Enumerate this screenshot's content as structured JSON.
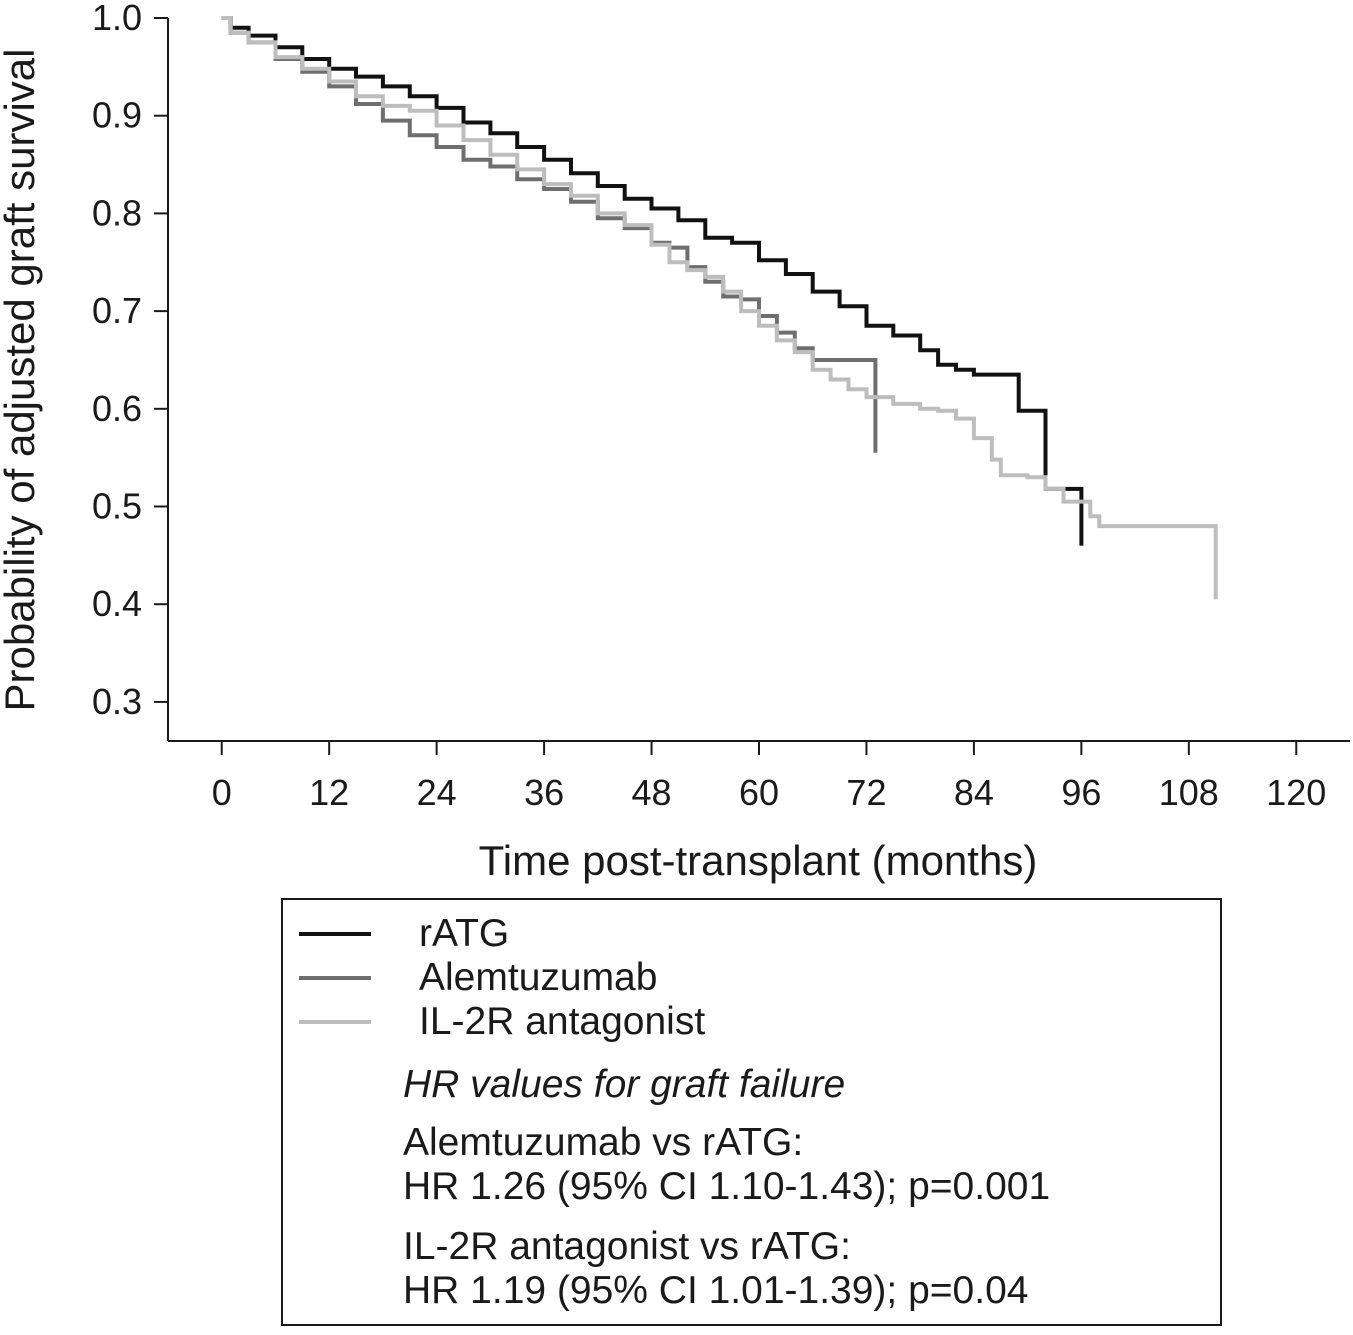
{
  "chart_data": {
    "type": "line",
    "xlabel": "Time post-transplant (months)",
    "ylabel": "Probability of adjusted graft survival",
    "xlim": [
      -6,
      126
    ],
    "ylim": [
      0.26,
      1.0
    ],
    "xticks": [
      0,
      12,
      24,
      36,
      48,
      60,
      72,
      84,
      96,
      108,
      120
    ],
    "yticks": [
      0.3,
      0.4,
      0.5,
      0.6,
      0.7,
      0.8,
      0.9,
      1.0
    ],
    "ytick_labels": [
      "0.3",
      "0.4",
      "0.5",
      "0.6",
      "0.7",
      "0.8",
      "0.9",
      "1.0"
    ],
    "step": true,
    "series": [
      {
        "name": "rATG",
        "color": "#111111",
        "points": [
          [
            0,
            1.0
          ],
          [
            1,
            0.99
          ],
          [
            3,
            0.982
          ],
          [
            6,
            0.97
          ],
          [
            9,
            0.958
          ],
          [
            12,
            0.948
          ],
          [
            15,
            0.94
          ],
          [
            18,
            0.93
          ],
          [
            21,
            0.92
          ],
          [
            24,
            0.908
          ],
          [
            27,
            0.893
          ],
          [
            30,
            0.882
          ],
          [
            33,
            0.868
          ],
          [
            36,
            0.855
          ],
          [
            39,
            0.841
          ],
          [
            42,
            0.828
          ],
          [
            45,
            0.815
          ],
          [
            48,
            0.805
          ],
          [
            51,
            0.793
          ],
          [
            54,
            0.775
          ],
          [
            57,
            0.77
          ],
          [
            60,
            0.752
          ],
          [
            63,
            0.738
          ],
          [
            66,
            0.72
          ],
          [
            69,
            0.705
          ],
          [
            72,
            0.685
          ],
          [
            75,
            0.675
          ],
          [
            78,
            0.66
          ],
          [
            80,
            0.645
          ],
          [
            82,
            0.64
          ],
          [
            84,
            0.635
          ],
          [
            89,
            0.635
          ],
          [
            89,
            0.598
          ],
          [
            92,
            0.598
          ],
          [
            92,
            0.518
          ],
          [
            96,
            0.518
          ],
          [
            96,
            0.46
          ]
        ]
      },
      {
        "name": "Alemtuzumab",
        "color": "#6e6e6e",
        "points": [
          [
            0,
            1.0
          ],
          [
            1,
            0.985
          ],
          [
            3,
            0.975
          ],
          [
            6,
            0.958
          ],
          [
            9,
            0.945
          ],
          [
            12,
            0.93
          ],
          [
            15,
            0.912
          ],
          [
            18,
            0.895
          ],
          [
            21,
            0.88
          ],
          [
            24,
            0.868
          ],
          [
            27,
            0.855
          ],
          [
            30,
            0.848
          ],
          [
            33,
            0.835
          ],
          [
            36,
            0.825
          ],
          [
            39,
            0.812
          ],
          [
            42,
            0.795
          ],
          [
            45,
            0.785
          ],
          [
            48,
            0.77
          ],
          [
            50,
            0.765
          ],
          [
            52,
            0.745
          ],
          [
            54,
            0.73
          ],
          [
            56,
            0.715
          ],
          [
            58,
            0.712
          ],
          [
            60,
            0.695
          ],
          [
            62,
            0.678
          ],
          [
            64,
            0.662
          ],
          [
            66,
            0.65
          ],
          [
            70,
            0.65
          ],
          [
            73,
            0.65
          ],
          [
            73,
            0.555
          ]
        ]
      },
      {
        "name": "IL-2R antagonist",
        "color": "#bdbdbd",
        "points": [
          [
            0,
            1.0
          ],
          [
            1,
            0.985
          ],
          [
            3,
            0.975
          ],
          [
            6,
            0.96
          ],
          [
            9,
            0.948
          ],
          [
            12,
            0.935
          ],
          [
            15,
            0.92
          ],
          [
            18,
            0.91
          ],
          [
            21,
            0.905
          ],
          [
            24,
            0.89
          ],
          [
            27,
            0.875
          ],
          [
            30,
            0.86
          ],
          [
            33,
            0.845
          ],
          [
            36,
            0.83
          ],
          [
            39,
            0.818
          ],
          [
            42,
            0.8
          ],
          [
            45,
            0.788
          ],
          [
            48,
            0.768
          ],
          [
            50,
            0.75
          ],
          [
            52,
            0.742
          ],
          [
            54,
            0.735
          ],
          [
            56,
            0.72
          ],
          [
            58,
            0.7
          ],
          [
            60,
            0.685
          ],
          [
            62,
            0.67
          ],
          [
            64,
            0.658
          ],
          [
            66,
            0.64
          ],
          [
            68,
            0.63
          ],
          [
            70,
            0.62
          ],
          [
            72,
            0.612
          ],
          [
            75,
            0.605
          ],
          [
            78,
            0.6
          ],
          [
            80,
            0.598
          ],
          [
            82,
            0.59
          ],
          [
            84,
            0.57
          ],
          [
            86,
            0.548
          ],
          [
            87,
            0.532
          ],
          [
            90,
            0.53
          ],
          [
            92,
            0.518
          ],
          [
            94,
            0.505
          ],
          [
            97,
            0.49
          ],
          [
            98,
            0.48
          ],
          [
            103,
            0.48
          ],
          [
            106,
            0.48
          ],
          [
            111,
            0.48
          ],
          [
            111,
            0.405
          ]
        ]
      }
    ],
    "legend": {
      "placement": "bottom",
      "note_title": "HR values for graft failure",
      "note_1_line_1": "Alemtuzumab vs rATG:",
      "note_1_line_2": "HR 1.26 (95% CI 1.10-1.43); p=0.001",
      "note_2_line_1": "IL-2R antagonist vs rATG:",
      "note_2_line_2": "HR 1.19 (95% CI 1.01-1.39); p=0.04"
    }
  }
}
